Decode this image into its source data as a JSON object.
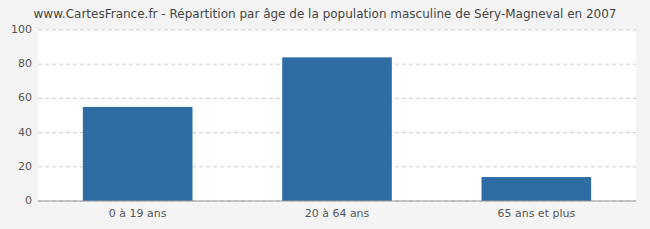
{
  "chart_data": {
    "type": "bar",
    "title": "www.CartesFrance.fr - Répartition par âge de la population masculine de Séry-Magneval en 2007",
    "categories": [
      "0 à 19 ans",
      "20 à 64 ans",
      "65 ans et plus"
    ],
    "values": [
      55,
      84,
      14
    ],
    "color": "#2e6da4",
    "ylim": [
      0,
      100
    ],
    "yticks": [
      0,
      20,
      40,
      60,
      80,
      100
    ],
    "grid": true
  }
}
